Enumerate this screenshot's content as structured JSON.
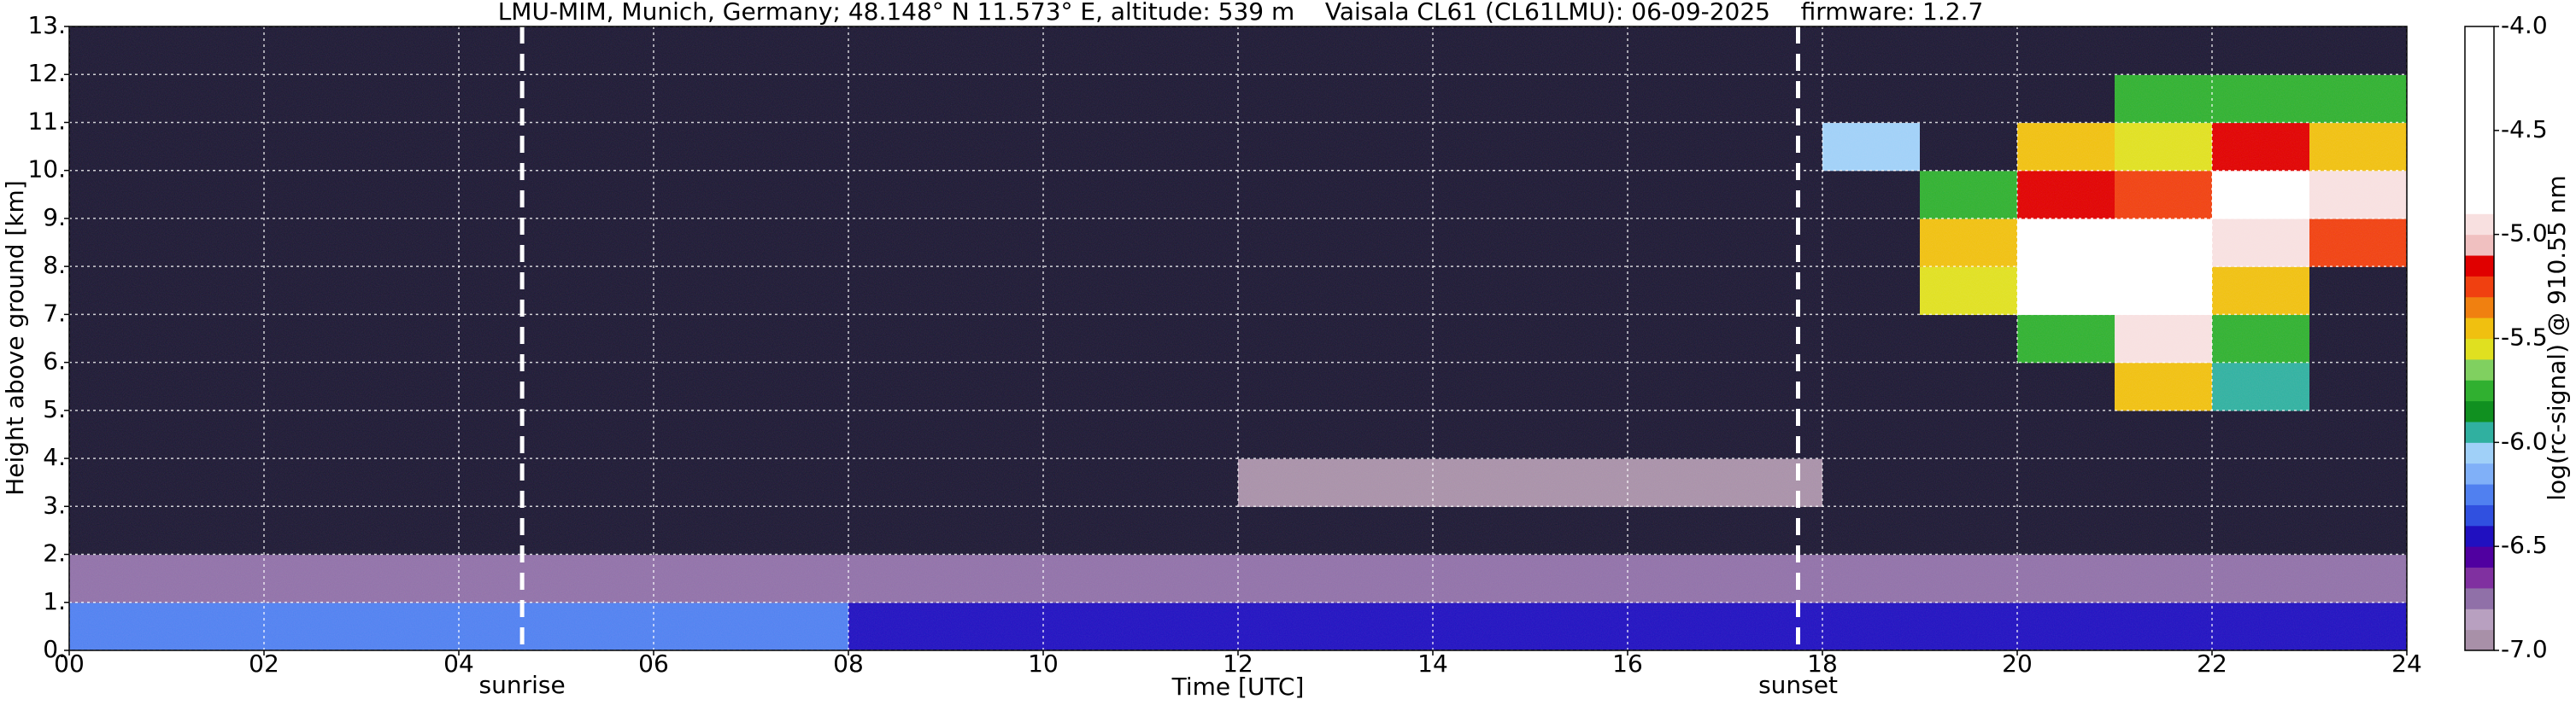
{
  "chart_data": {
    "type": "heatmap",
    "title": "LMU-MIM, Munich, Germany; 48.148° N 11.573° E, altitude: 539 m    Vaisala CL61 (CL61LMU): 06-09-2025    firmware: 1.2.7",
    "x_label": "Time [UTC]",
    "y_label": "Height above ground [km]",
    "colorbar_label": "log(rc-signal) @ 910.55 nm",
    "xlim": [
      0,
      24
    ],
    "xticks": [
      {
        "value": 0,
        "label": "00"
      },
      {
        "value": 2,
        "label": "02"
      },
      {
        "value": 4,
        "label": "04"
      },
      {
        "value": 6,
        "label": "06"
      },
      {
        "value": 8,
        "label": "08"
      },
      10,
      12,
      14,
      16,
      18,
      20,
      22,
      24
    ],
    "ylim": [
      0,
      13
    ],
    "yticks": [
      {
        "value": 0,
        "label": "0."
      },
      {
        "value": 1,
        "label": "1."
      },
      {
        "value": 2,
        "label": "2."
      },
      {
        "value": 3,
        "label": "3."
      },
      {
        "value": 4,
        "label": "4."
      },
      {
        "value": 5,
        "label": "5."
      },
      {
        "value": 6,
        "label": "6."
      },
      {
        "value": 7,
        "label": "7."
      },
      {
        "value": 8,
        "label": "8."
      },
      {
        "value": 9,
        "label": "9."
      },
      {
        "value": 10,
        "label": "10."
      },
      {
        "value": 11,
        "label": "11."
      },
      {
        "value": 12,
        "label": "12."
      },
      {
        "value": 13,
        "label": "13."
      }
    ],
    "grid": true,
    "zlim": [
      -7,
      -4
    ],
    "zticks": [
      {
        "value": -7,
        "label": "-7.0"
      },
      {
        "value": -6.5,
        "label": "-6.5"
      },
      {
        "value": -6,
        "label": "-6.0"
      },
      {
        "value": -5.5,
        "label": "-5.5"
      },
      {
        "value": -5,
        "label": "-5.0"
      },
      {
        "value": -4.5,
        "label": "-4.5"
      },
      {
        "value": -4,
        "label": "-4.0"
      }
    ],
    "colors": [
      "#a890a8",
      "#b8a0c0",
      "#9070a8",
      "#8030a0",
      "#5000a0",
      "#2010c0",
      "#3050e0",
      "#5080f0",
      "#80b0f8",
      "#a0d0f8",
      "#30b0a0",
      "#109020",
      "#30b030",
      "#80d060",
      "#e0e020",
      "#f0c010",
      "#f08010",
      "#f04010",
      "#e00000",
      "#f0c0c0",
      "#f8e0e0",
      "#ffffff",
      "#ffffff",
      "#ffffff",
      "#ffffff",
      "#ffffff",
      "#ffffff",
      "#ffffff",
      "#ffffff",
      "#ffffff"
    ],
    "under_color": "#1c1733",
    "annotations": [
      {
        "label": "sunrise",
        "x": 4.65
      },
      {
        "label": "sunset",
        "x": 17.75
      }
    ],
    "z": [
      [
        -6.3,
        -6.3,
        -6.3,
        -6.3,
        -6.3,
        -6.3,
        -6.3,
        -6.3,
        -6.5,
        -6.5,
        -6.5,
        -6.5,
        -6.5,
        -6.5,
        -6.5,
        -6.5,
        -6.5,
        -6.5,
        -6.4,
        -6.4,
        -6.4,
        -6.4,
        -6.4,
        -6.4
      ],
      [
        -6.7,
        -6.7,
        -6.7,
        -6.7,
        -6.7,
        -6.7,
        -6.7,
        -6.7,
        -6.7,
        -6.7,
        -6.7,
        -6.7,
        -6.7,
        -6.7,
        -6.7,
        -6.7,
        -6.7,
        -6.7,
        -6.7,
        -6.7,
        -6.7,
        -6.7,
        -6.7,
        -6.7
      ],
      [
        -7.2,
        -7.2,
        -7.2,
        -7.2,
        -7.2,
        -7.2,
        -7.2,
        -7.2,
        -7.2,
        -7.2,
        -7.2,
        -7.2,
        -7.2,
        -7.2,
        -7.2,
        -7.2,
        -7.2,
        -7.2,
        -7.2,
        -7.2,
        -7.2,
        -7.2,
        -7.2,
        -7.2
      ],
      [
        -7.2,
        -7.2,
        -7.2,
        -7.2,
        -7.2,
        -7.2,
        -7.2,
        -7.2,
        -7.2,
        -7.2,
        -7.2,
        -7.2,
        -7.0,
        -7.0,
        -7.0,
        -7.0,
        -7.0,
        -7.0,
        -7.2,
        -7.2,
        -7.2,
        -7.2,
        -7.2,
        -7.2
      ],
      [
        -7.2,
        -7.2,
        -7.2,
        -7.2,
        -7.2,
        -7.2,
        -7.2,
        -7.2,
        -7.2,
        -7.2,
        -7.2,
        -7.2,
        -7.2,
        -7.2,
        -7.2,
        -7.2,
        -7.2,
        -7.2,
        -7.2,
        -7.2,
        -7.2,
        -7.2,
        -7.2,
        -7.2
      ],
      [
        -7.2,
        -7.2,
        -7.2,
        -7.2,
        -7.2,
        -7.2,
        -7.2,
        -7.2,
        -7.2,
        -7.2,
        -7.2,
        -7.2,
        -7.2,
        -7.2,
        -7.2,
        -7.2,
        -7.2,
        -7.2,
        -7.2,
        -7.2,
        -7.2,
        -5.5,
        -6.0,
        -7.2
      ],
      [
        -7.2,
        -7.2,
        -7.2,
        -7.2,
        -7.2,
        -7.2,
        -7.2,
        -7.2,
        -7.2,
        -7.2,
        -7.2,
        -7.2,
        -7.2,
        -7.2,
        -7.2,
        -7.2,
        -7.2,
        -7.2,
        -7.2,
        -7.2,
        -5.8,
        -5.0,
        -5.8,
        -7.2
      ],
      [
        -7.2,
        -7.2,
        -7.2,
        -7.2,
        -7.2,
        -7.2,
        -7.2,
        -7.2,
        -7.2,
        -7.2,
        -7.2,
        -7.2,
        -7.2,
        -7.2,
        -7.2,
        -7.2,
        -7.2,
        -7.2,
        -7.2,
        -5.6,
        -4.5,
        -4.6,
        -5.4,
        -7.2
      ],
      [
        -7.2,
        -7.2,
        -7.2,
        -7.2,
        -7.2,
        -7.2,
        -7.2,
        -7.2,
        -7.2,
        -7.2,
        -7.2,
        -7.2,
        -7.2,
        -7.2,
        -7.2,
        -7.2,
        -7.2,
        -7.2,
        -7.2,
        -5.5,
        -4.8,
        -4.8,
        -5.0,
        -5.3
      ],
      [
        -7.2,
        -7.2,
        -7.2,
        -7.2,
        -7.2,
        -7.2,
        -7.2,
        -7.2,
        -7.2,
        -7.2,
        -7.2,
        -7.2,
        -7.2,
        -7.2,
        -7.2,
        -7.2,
        -7.2,
        -7.2,
        -7.2,
        -5.8,
        -5.2,
        -5.3,
        -4.6,
        -5.0
      ],
      [
        -7.2,
        -7.2,
        -7.2,
        -7.2,
        -7.2,
        -7.2,
        -7.2,
        -7.2,
        -7.2,
        -7.2,
        -7.2,
        -7.2,
        -7.2,
        -7.2,
        -7.2,
        -7.2,
        -7.2,
        -7.2,
        -6.1,
        -7.2,
        -5.5,
        -5.6,
        -5.2,
        -5.4
      ],
      [
        -7.2,
        -7.2,
        -7.2,
        -7.2,
        -7.2,
        -7.2,
        -7.2,
        -7.2,
        -7.2,
        -7.2,
        -7.2,
        -7.2,
        -7.2,
        -7.2,
        -7.2,
        -7.2,
        -7.2,
        -7.2,
        -7.2,
        -7.2,
        -7.2,
        -5.8,
        -5.8,
        -5.7
      ],
      [
        -7.2,
        -7.2,
        -7.2,
        -7.2,
        -7.2,
        -7.2,
        -7.2,
        -7.2,
        -7.2,
        -7.2,
        -7.2,
        -7.2,
        -7.2,
        -7.2,
        -7.2,
        -7.2,
        -7.2,
        -7.2,
        -7.2,
        -7.2,
        -7.2,
        -7.2,
        -7.2,
        -7.2
      ]
    ]
  }
}
